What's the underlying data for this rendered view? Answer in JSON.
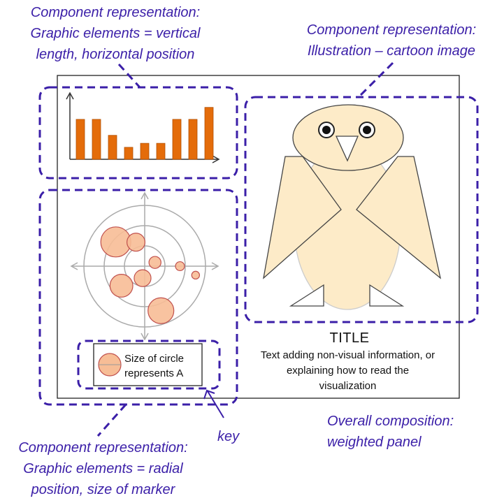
{
  "annotations": {
    "top_left": [
      "Component representation:",
      "Graphic elements = vertical",
      "length, horizontal position"
    ],
    "top_right": [
      "Component representation:",
      "Illustration – cartoon image"
    ],
    "bottom_left": [
      "Component representation:",
      "Graphic elements = radial",
      "position, size of marker"
    ],
    "key": "key",
    "overall": [
      "Overall composition:",
      "weighted panel"
    ]
  },
  "panel": {
    "title": "TITLE",
    "description": [
      "Text adding non-visual information, or",
      "explaining how to read the",
      "visualization"
    ]
  },
  "legend": {
    "lines": [
      "Size of circle",
      "represents A"
    ]
  },
  "colors": {
    "annotation": "#3b1fa8",
    "dashed_box": "#3b1fa8",
    "bar_fill": "#e46c0a",
    "bubble_fill": "#f7bd96",
    "bubble_stroke": "#c0504d",
    "owl_fill": "#fdebc8"
  },
  "chart_data": [
    {
      "type": "bar",
      "values": [
        5,
        5,
        3,
        1.5,
        2,
        2,
        5,
        5,
        6.5
      ]
    },
    {
      "type": "scatter",
      "note_type": "radial bubble",
      "points": [
        {
          "angle_deg": 140,
          "radius": 0.62,
          "size": 5
        },
        {
          "angle_deg": 110,
          "radius": 0.42,
          "size": 3
        },
        {
          "angle_deg": 20,
          "radius": 0.18,
          "size": 2
        },
        {
          "angle_deg": 0,
          "radius": 0.58,
          "size": 1.5
        },
        {
          "angle_deg": -10,
          "radius": 0.85,
          "size": 1.3
        },
        {
          "angle_deg": -100,
          "radius": 0.2,
          "size": 2.8
        },
        {
          "angle_deg": -140,
          "radius": 0.5,
          "size": 3.8
        },
        {
          "angle_deg": -70,
          "radius": 0.78,
          "size": 4.3
        }
      ]
    }
  ]
}
